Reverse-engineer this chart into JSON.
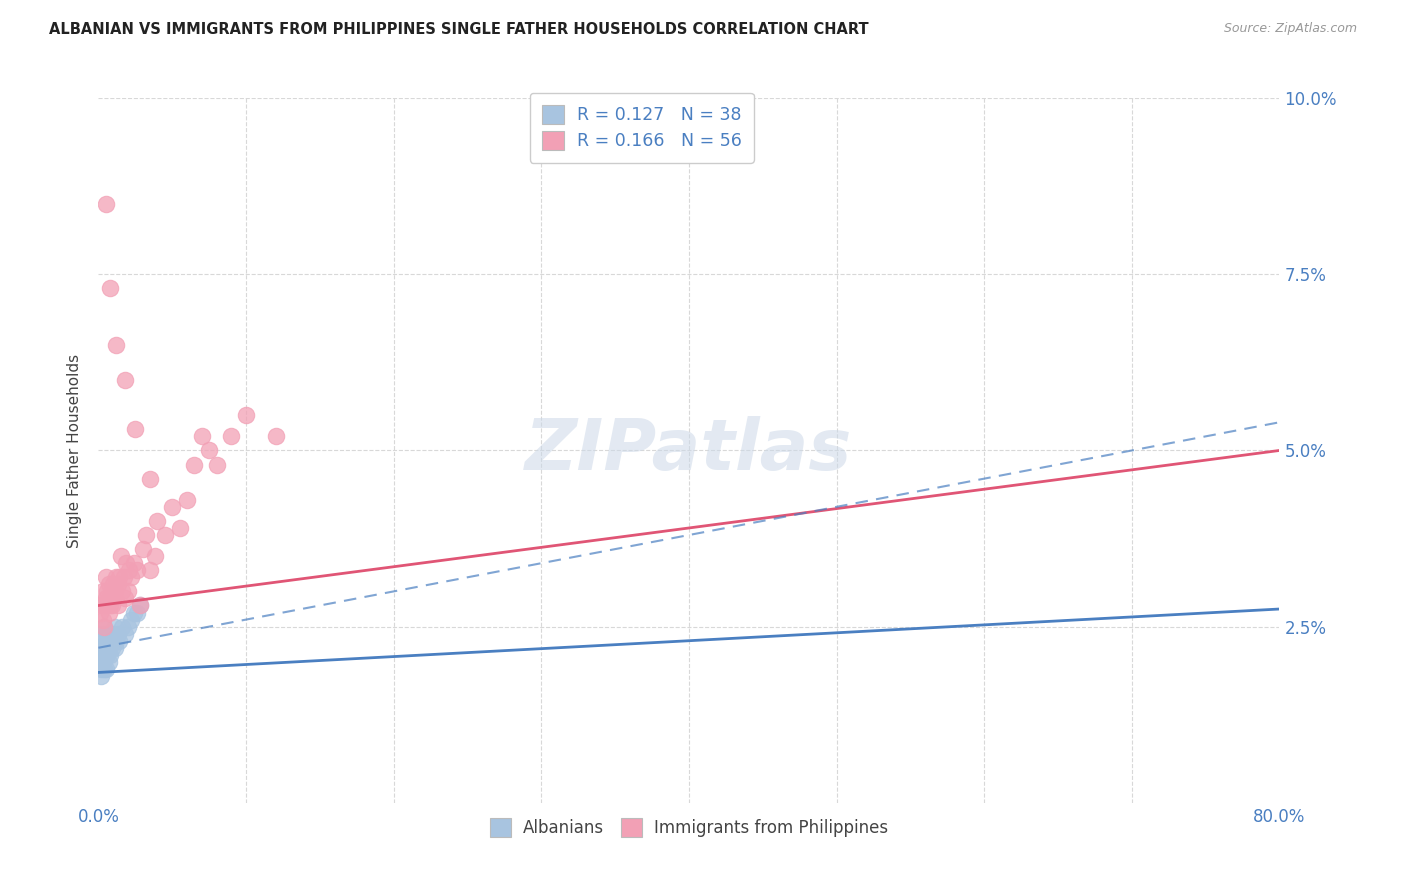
{
  "title": "ALBANIAN VS IMMIGRANTS FROM PHILIPPINES SINGLE FATHER HOUSEHOLDS CORRELATION CHART",
  "source": "Source: ZipAtlas.com",
  "ylabel": "Single Father Households",
  "albanian_color": "#a8c4e0",
  "philippines_color": "#f2a0b5",
  "albanian_line_color": "#4a7fc1",
  "philippines_line_color": "#e05575",
  "legend_text_color": "#4a7fc1",
  "background_color": "#ffffff",
  "grid_color": "#d8d8d8",
  "watermark_color": "#ccd8e8",
  "title_color": "#222222",
  "source_color": "#999999",
  "albanian_r": 0.127,
  "albanian_n": 38,
  "philippines_r": 0.166,
  "philippines_n": 56,
  "xlim": [
    0.0,
    0.8
  ],
  "ylim": [
    0.0,
    0.1
  ],
  "xticks": [
    0.0,
    0.1,
    0.2,
    0.3,
    0.4,
    0.5,
    0.6,
    0.7,
    0.8
  ],
  "yticks": [
    0.0,
    0.025,
    0.05,
    0.075,
    0.1
  ],
  "alb_trend": [
    0.0,
    0.8,
    0.0185,
    0.0275
  ],
  "phil_trend": [
    0.0,
    0.8,
    0.028,
    0.05
  ],
  "alb_dashed_trend": [
    0.0,
    0.8,
    0.022,
    0.054
  ],
  "alb_x": [
    0.001,
    0.001,
    0.001,
    0.002,
    0.002,
    0.002,
    0.002,
    0.003,
    0.003,
    0.003,
    0.004,
    0.004,
    0.004,
    0.005,
    0.005,
    0.005,
    0.006,
    0.006,
    0.007,
    0.007,
    0.007,
    0.008,
    0.008,
    0.009,
    0.009,
    0.01,
    0.011,
    0.011,
    0.012,
    0.013,
    0.014,
    0.016,
    0.018,
    0.02,
    0.022,
    0.024,
    0.026,
    0.028
  ],
  "alb_y": [
    0.022,
    0.021,
    0.02,
    0.023,
    0.022,
    0.019,
    0.018,
    0.024,
    0.022,
    0.02,
    0.025,
    0.022,
    0.019,
    0.023,
    0.021,
    0.019,
    0.024,
    0.021,
    0.023,
    0.022,
    0.02,
    0.023,
    0.021,
    0.024,
    0.022,
    0.023,
    0.025,
    0.022,
    0.023,
    0.024,
    0.023,
    0.025,
    0.024,
    0.025,
    0.026,
    0.027,
    0.027,
    0.028
  ],
  "phil_x": [
    0.001,
    0.002,
    0.003,
    0.003,
    0.004,
    0.004,
    0.005,
    0.005,
    0.006,
    0.006,
    0.007,
    0.007,
    0.008,
    0.008,
    0.009,
    0.009,
    0.01,
    0.01,
    0.011,
    0.012,
    0.013,
    0.013,
    0.014,
    0.015,
    0.016,
    0.017,
    0.018,
    0.019,
    0.02,
    0.021,
    0.022,
    0.024,
    0.026,
    0.028,
    0.03,
    0.032,
    0.035,
    0.038,
    0.04,
    0.045,
    0.05,
    0.055,
    0.06,
    0.065,
    0.07,
    0.075,
    0.08,
    0.09,
    0.1,
    0.12,
    0.005,
    0.008,
    0.012,
    0.018,
    0.025,
    0.035
  ],
  "phil_y": [
    0.027,
    0.028,
    0.026,
    0.03,
    0.028,
    0.025,
    0.032,
    0.029,
    0.028,
    0.03,
    0.027,
    0.031,
    0.029,
    0.028,
    0.03,
    0.028,
    0.031,
    0.029,
    0.03,
    0.032,
    0.031,
    0.028,
    0.032,
    0.035,
    0.03,
    0.032,
    0.029,
    0.034,
    0.03,
    0.033,
    0.032,
    0.034,
    0.033,
    0.028,
    0.036,
    0.038,
    0.033,
    0.035,
    0.04,
    0.038,
    0.042,
    0.039,
    0.043,
    0.048,
    0.052,
    0.05,
    0.048,
    0.052,
    0.055,
    0.052,
    0.085,
    0.073,
    0.065,
    0.06,
    0.053,
    0.046
  ]
}
